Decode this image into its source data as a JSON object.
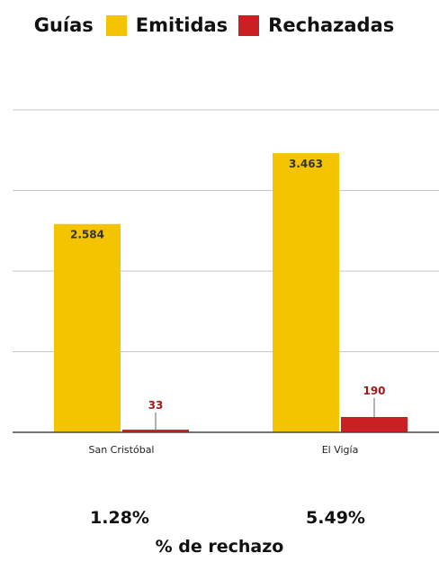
{
  "legend": {
    "title": "Guías",
    "items": [
      "Emitidas",
      "Rechazadas"
    ]
  },
  "colors": {
    "Emitidas": "#f5c400",
    "Rechazadas": "#cc1f24",
    "grid": "#c8c8c8",
    "axis": "#444444",
    "emitidas_label": "#333333",
    "rechazadas_label": "#a31a1a"
  },
  "chart_data": {
    "type": "bar",
    "categories": [
      "San Cristóbal",
      "El Vigía"
    ],
    "series": [
      {
        "name": "Emitidas",
        "values": [
          2584,
          3463
        ],
        "labels": [
          "2.584",
          "3.463"
        ]
      },
      {
        "name": "Rechazadas",
        "values": [
          33,
          190
        ],
        "labels": [
          "33",
          "190"
        ]
      }
    ],
    "grid": true,
    "legend_position": "top"
  },
  "footer": {
    "percentages": [
      "1.28%",
      "5.49%"
    ],
    "label": "% de rechazo"
  }
}
